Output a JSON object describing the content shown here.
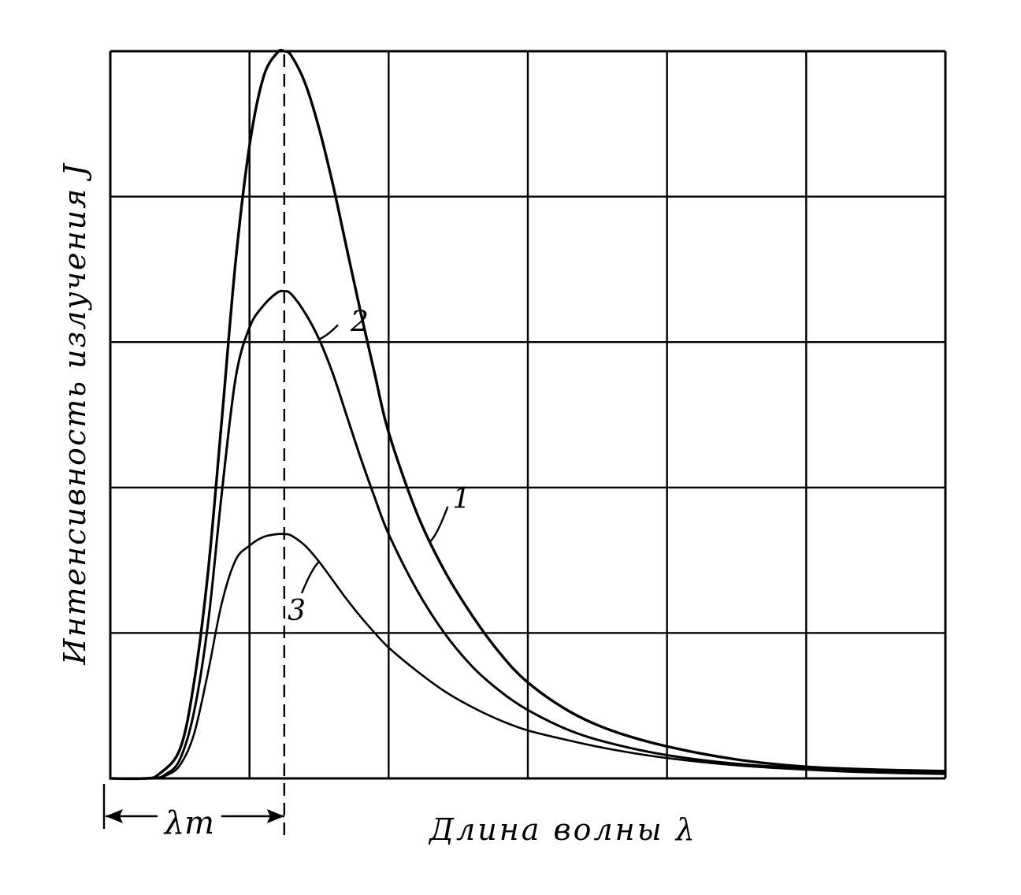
{
  "chart_data": {
    "type": "line",
    "title": "",
    "xlabel": "Длина волны λ",
    "ylabel": "Интенсивность излучения J",
    "xlim": [
      0,
      6
    ],
    "ylim": [
      0,
      5
    ],
    "grid": true,
    "x_ticks_labeled": false,
    "y_ticks_labeled": false,
    "peak_marker": {
      "label": "λm",
      "x": 1.25
    },
    "series": [
      {
        "name": "1",
        "x": [
          0,
          0.25,
          0.35,
          0.5,
          0.6,
          0.7,
          0.8,
          0.9,
          1.0,
          1.1,
          1.2,
          1.25,
          1.3,
          1.4,
          1.5,
          1.6,
          1.7,
          1.8,
          1.9,
          2.0,
          2.2,
          2.4,
          2.6,
          2.8,
          3.0,
          3.3,
          3.6,
          4.0,
          4.5,
          5.0,
          5.5,
          6.0
        ],
        "y": [
          0,
          0,
          0.03,
          0.2,
          0.65,
          1.4,
          2.45,
          3.55,
          4.35,
          4.82,
          4.99,
          5.0,
          4.97,
          4.78,
          4.47,
          4.08,
          3.64,
          3.2,
          2.78,
          2.38,
          1.83,
          1.43,
          1.12,
          0.86,
          0.66,
          0.46,
          0.33,
          0.22,
          0.13,
          0.08,
          0.06,
          0.05
        ]
      },
      {
        "name": "2",
        "x": [
          0,
          0.3,
          0.4,
          0.5,
          0.6,
          0.7,
          0.8,
          0.9,
          1.0,
          1.1,
          1.2,
          1.25,
          1.3,
          1.4,
          1.5,
          1.6,
          1.7,
          1.8,
          1.9,
          2.0,
          2.2,
          2.4,
          2.6,
          2.8,
          3.0,
          3.3,
          3.6,
          4.0,
          4.5,
          5.0,
          5.5,
          6.0
        ],
        "y": [
          0,
          0,
          0.03,
          0.13,
          0.45,
          1.05,
          1.95,
          2.75,
          3.1,
          3.25,
          3.34,
          3.35,
          3.33,
          3.2,
          3.02,
          2.78,
          2.49,
          2.2,
          1.93,
          1.68,
          1.3,
          1.0,
          0.77,
          0.6,
          0.47,
          0.33,
          0.24,
          0.16,
          0.1,
          0.07,
          0.05,
          0.04
        ]
      },
      {
        "name": "3",
        "x": [
          0,
          0.3,
          0.4,
          0.5,
          0.6,
          0.7,
          0.8,
          0.9,
          1.0,
          1.1,
          1.2,
          1.25,
          1.3,
          1.4,
          1.5,
          1.6,
          1.7,
          1.8,
          1.9,
          2.0,
          2.2,
          2.4,
          2.6,
          2.8,
          3.0,
          3.3,
          3.6,
          4.0,
          4.5,
          5.0,
          5.5,
          6.0
        ],
        "y": [
          0,
          0,
          0.02,
          0.09,
          0.3,
          0.72,
          1.2,
          1.5,
          1.6,
          1.66,
          1.68,
          1.68,
          1.67,
          1.6,
          1.49,
          1.36,
          1.23,
          1.11,
          1.0,
          0.9,
          0.74,
          0.6,
          0.49,
          0.4,
          0.33,
          0.26,
          0.2,
          0.14,
          0.09,
          0.06,
          0.04,
          0.03
        ]
      }
    ]
  }
}
